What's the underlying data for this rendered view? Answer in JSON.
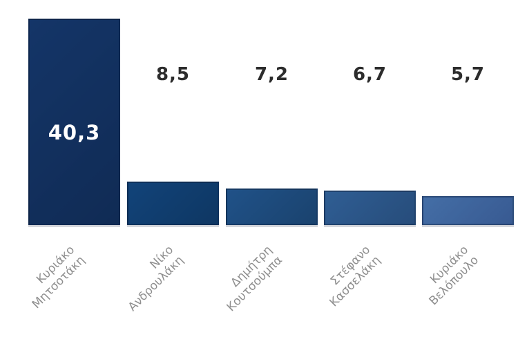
{
  "chart_data": {
    "type": "bar",
    "categories": [
      "Κυριάκο Μητσοτάκη",
      "Νίκο Ανδρουλάκη",
      "Δημήτρη Κουτσούμπα",
      "Στέφανο Κασσελάκη",
      "Κυριάκο Βελόπουλο"
    ],
    "category_lines": [
      [
        "Κυριάκο",
        "Μητσοτάκη"
      ],
      [
        "Νίκο",
        "Ανδρουλάκη"
      ],
      [
        "Δημήτρη",
        "Κουτσούμπα"
      ],
      [
        "Στέφανο",
        "Κασσελάκη"
      ],
      [
        "Κυριάκο",
        "Βελόπουλο"
      ]
    ],
    "values": [
      40.3,
      8.5,
      7.2,
      6.7,
      5.7
    ],
    "value_labels": [
      "40,3",
      "8,5",
      "7,2",
      "6,7",
      "5,7"
    ],
    "title": "",
    "xlabel": "",
    "ylabel": "",
    "ylim": [
      0,
      40.3
    ],
    "grid": false,
    "legend": null,
    "bar_colors": [
      "#12305e",
      "#103d6e",
      "#1d4a7b",
      "#2b5587",
      "#3e649c"
    ],
    "value_label_color_inside": "#ffffff",
    "value_label_color_outside": "#2d2d2d",
    "tick_label_color": "#8e8e8e",
    "tick_label_rotation_deg": -45,
    "first_value_label_position": "inside-bar",
    "other_value_labels_position": "floating-above-aligned-row"
  }
}
